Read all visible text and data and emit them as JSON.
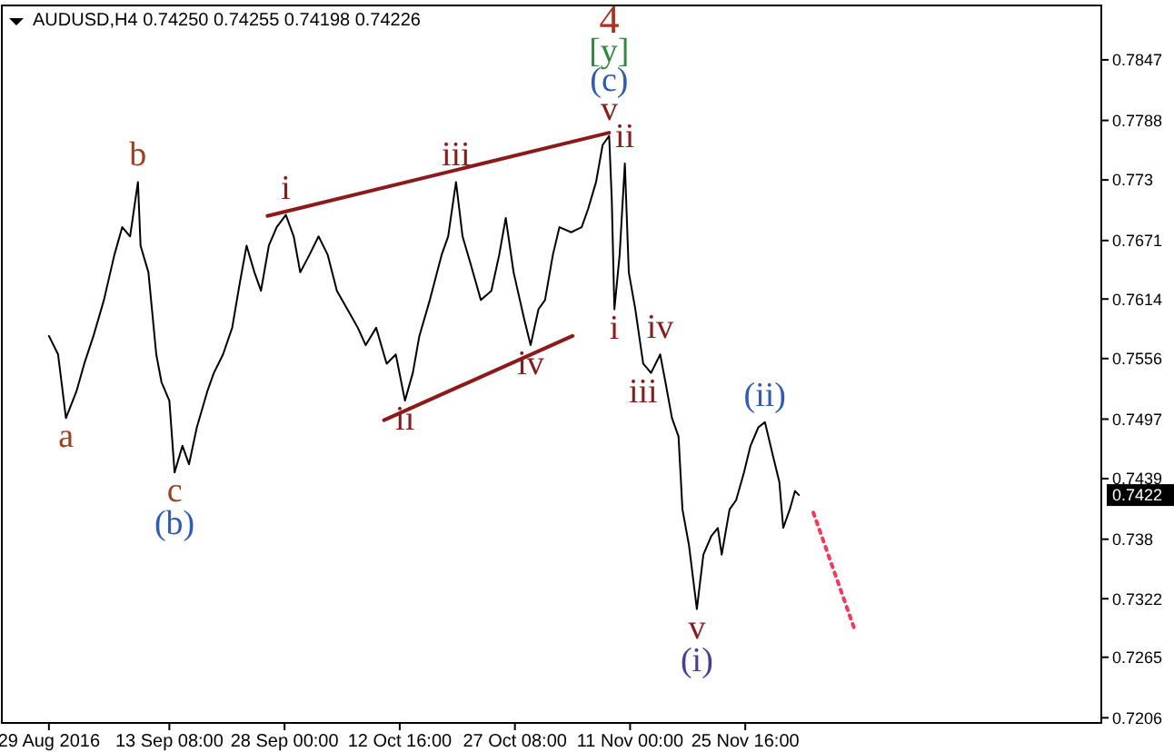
{
  "chart_data": {
    "type": "line",
    "title": "AUDUSD,H4 0.74250 0.74255 0.74198 0.74226",
    "xlim": [
      "2016-08-23T00:00",
      "2017-01-10T00:00"
    ],
    "xticks": [
      {
        "value": "2016-08-29T00:00",
        "label": "29 Aug 2016"
      },
      {
        "value": "2016-09-13T08:00",
        "label": "13 Sep 08:00"
      },
      {
        "value": "2016-09-28T00:00",
        "label": "28 Sep 00:00"
      },
      {
        "value": "2016-10-12T16:00",
        "label": "12 Oct 16:00"
      },
      {
        "value": "2016-10-27T08:00",
        "label": "27 Oct 08:00"
      },
      {
        "value": "2016-11-11T00:00",
        "label": "11 Nov 00:00"
      },
      {
        "value": "2016-11-25T16:00",
        "label": "25 Nov 16:00"
      }
    ],
    "ylim": [
      0.7201,
      0.79
    ],
    "yticks": [
      0.7206,
      0.7265,
      0.7322,
      0.738,
      0.7439,
      0.7497,
      0.7556,
      0.7614,
      0.7671,
      0.773,
      0.7788,
      0.7847
    ],
    "grid": false,
    "line_style": "solid",
    "series": [
      {
        "color": "#000000",
        "x": [
          "2016-08-29T00:00",
          "2016-08-30T04:00",
          "2016-08-31T04:00",
          "2016-09-01T12:00",
          "2016-09-02T12:00",
          "2016-09-03T16:00",
          "2016-09-05T00:00",
          "2016-09-06T08:00",
          "2016-09-07T08:00",
          "2016-09-08T08:00",
          "2016-09-09T08:00",
          "2016-09-09T16:00",
          "2016-09-10T16:00",
          "2016-09-11T16:00",
          "2016-09-12T08:00",
          "2016-09-13T08:00",
          "2016-09-14T00:00",
          "2016-09-15T00:00",
          "2016-09-15T20:00",
          "2016-09-16T20:00",
          "2016-09-18T04:00",
          "2016-09-19T00:00",
          "2016-09-20T04:00",
          "2016-09-21T08:00",
          "2016-09-22T08:00",
          "2016-09-23T04:00",
          "2016-09-24T04:00",
          "2016-09-25T00:00",
          "2016-09-26T00:00",
          "2016-09-27T00:00",
          "2016-09-28T04:00",
          "2016-09-29T04:00",
          "2016-09-30T00:00",
          "2016-10-01T04:00",
          "2016-10-02T08:00",
          "2016-10-03T12:00",
          "2016-10-04T16:00",
          "2016-10-06T00:00",
          "2016-10-07T08:00",
          "2016-10-08T08:00",
          "2016-10-09T16:00",
          "2016-10-11T00:00",
          "2016-10-12T04:00",
          "2016-10-13T08:00",
          "2016-10-14T08:00",
          "2016-10-15T04:00",
          "2016-10-16T12:00",
          "2016-10-18T00:00",
          "2016-10-18T20:00",
          "2016-10-19T20:00",
          "2016-10-20T16:00",
          "2016-10-21T16:00",
          "2016-10-23T00:00",
          "2016-10-24T08:00",
          "2016-10-25T08:00",
          "2016-10-26T04:00",
          "2016-10-27T04:00",
          "2016-10-28T12:00",
          "2016-10-29T08:00",
          "2016-10-30T08:00",
          "2016-10-31T04:00",
          "2016-11-01T04:00",
          "2016-11-02T00:00",
          "2016-11-03T12:00",
          "2016-11-04T20:00",
          "2016-11-05T16:00",
          "2016-11-06T16:00",
          "2016-11-07T12:00",
          "2016-11-08T08:00",
          "2016-11-08T16:00",
          "2016-11-09T00:00",
          "2016-11-09T16:00",
          "2016-11-10T08:00",
          "2016-11-10T20:00",
          "2016-11-11T16:00",
          "2016-11-12T16:00",
          "2016-11-13T16:00",
          "2016-11-14T20:00",
          "2016-11-15T12:00",
          "2016-11-16T08:00",
          "2016-11-17T04:00",
          "2016-11-17T16:00",
          "2016-11-18T12:00",
          "2016-11-19T12:00",
          "2016-11-20T08:00",
          "2016-11-21T08:00",
          "2016-11-22T04:00",
          "2016-11-22T16:00",
          "2016-11-23T16:00",
          "2016-11-24T12:00",
          "2016-11-25T12:00",
          "2016-11-26T08:00",
          "2016-11-27T08:00",
          "2016-11-28T04:00",
          "2016-11-29T04:00",
          "2016-11-30T00:00",
          "2016-11-30T12:00",
          "2016-12-01T08:00",
          "2016-12-02T00:00",
          "2016-12-02T12:00"
        ],
        "values": [
          0.7578,
          0.756,
          0.7498,
          0.7524,
          0.7551,
          0.7578,
          0.7613,
          0.7657,
          0.7684,
          0.7675,
          0.7728,
          0.7666,
          0.764,
          0.756,
          0.7533,
          0.7515,
          0.7445,
          0.7471,
          0.7453,
          0.7489,
          0.7524,
          0.7542,
          0.756,
          0.7586,
          0.7631,
          0.7666,
          0.764,
          0.7622,
          0.7666,
          0.7684,
          0.7696,
          0.7675,
          0.764,
          0.7657,
          0.7675,
          0.7657,
          0.7622,
          0.7604,
          0.7586,
          0.7569,
          0.7586,
          0.7551,
          0.756,
          0.7515,
          0.7542,
          0.7578,
          0.7613,
          0.7657,
          0.7675,
          0.7728,
          0.7675,
          0.7649,
          0.7613,
          0.7622,
          0.7657,
          0.7693,
          0.764,
          0.7595,
          0.7569,
          0.7604,
          0.7613,
          0.7657,
          0.7684,
          0.7679,
          0.7684,
          0.7702,
          0.7728,
          0.7764,
          0.7773,
          0.7711,
          0.7604,
          0.7657,
          0.7746,
          0.764,
          0.7604,
          0.7551,
          0.7542,
          0.756,
          0.7533,
          0.7498,
          0.748,
          0.7409,
          0.7374,
          0.7312,
          0.7365,
          0.7383,
          0.7391,
          0.7365,
          0.7409,
          0.7418,
          0.7445,
          0.7471,
          0.7489,
          0.7494,
          0.7462,
          0.7436,
          0.7391,
          0.7409,
          0.7427,
          0.7423
        ]
      },
      {
        "color": "#8b1a1a",
        "x": [
          "2016-09-25T20:00",
          "2016-11-08T08:00"
        ],
        "values": [
          0.7695,
          0.7776
        ]
      },
      {
        "color": "#8b1a1a",
        "x": [
          "2016-10-10T16:00",
          "2016-11-03T16:00"
        ],
        "values": [
          0.7496,
          0.7578
        ]
      },
      {
        "color": "#ff3355",
        "line_style": "dotted",
        "x": [
          "2016-12-04T08:00",
          "2016-12-09T12:00"
        ],
        "values": [
          0.7406,
          0.7294
        ]
      }
    ],
    "annotations": [
      {
        "text": "a",
        "x": "2016-08-31T04:00",
        "y": 0.7498
      },
      {
        "text": "b",
        "x": "2016-09-09T08:00",
        "y": 0.7728
      },
      {
        "text": "c",
        "x": "2016-09-14T00:00",
        "y": 0.7445
      },
      {
        "text": "(b)",
        "x": "2016-09-14T00:00",
        "y": 0.7445
      },
      {
        "text": "i",
        "x": "2016-09-28T04:00",
        "y": 0.7696
      },
      {
        "text": "ii",
        "x": "2016-10-13T08:00",
        "y": 0.7515
      },
      {
        "text": "iii",
        "x": "2016-10-19T20:00",
        "y": 0.7728
      },
      {
        "text": "iv",
        "x": "2016-10-29T08:00",
        "y": 0.7569
      },
      {
        "text": "v",
        "x": "2016-11-08T08:00",
        "y": 0.7773
      },
      {
        "text": "(c)",
        "x": "2016-11-08T08:00",
        "y": 0.7773
      },
      {
        "text": "[y]",
        "x": "2016-11-08T08:00",
        "y": 0.7773
      },
      {
        "text": "4",
        "x": "2016-11-08T08:00",
        "y": 0.7773
      },
      {
        "text": "i",
        "x": "2016-11-09T00:00",
        "y": 0.7604
      },
      {
        "text": "ii",
        "x": "2016-11-10T08:00",
        "y": 0.7746
      },
      {
        "text": "iii",
        "x": "2016-11-12T16:00",
        "y": 0.7542
      },
      {
        "text": "iv",
        "x": "2016-11-14T20:00",
        "y": 0.756
      },
      {
        "text": "v",
        "x": "2016-11-19T12:00",
        "y": 0.7312
      },
      {
        "text": "(i)",
        "x": "2016-11-19T12:00",
        "y": 0.7312
      },
      {
        "text": "(ii)",
        "x": "2016-11-28T04:00",
        "y": 0.7494
      },
      "0.7422"
    ]
  }
}
